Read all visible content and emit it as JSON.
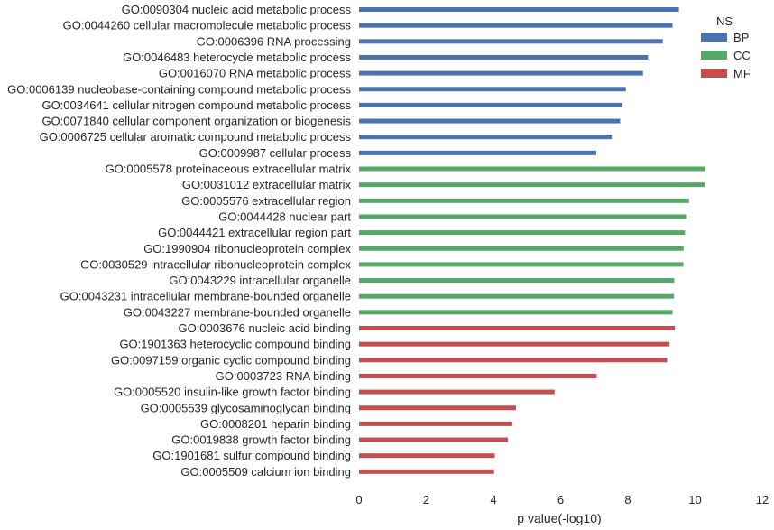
{
  "chart_data": {
    "type": "bar",
    "orientation": "horizontal",
    "xlabel": "p value(-log10)",
    "ylabel": "",
    "xlim": [
      0,
      12
    ],
    "xticks": [
      "0",
      "2",
      "4",
      "6",
      "8",
      "10",
      "12"
    ],
    "grid": false,
    "legend": {
      "title": "NS",
      "placement": "top-right",
      "entries": [
        {
          "name": "BP",
          "color": "#4c72b0"
        },
        {
          "name": "CC",
          "color": "#55a868"
        },
        {
          "name": "MF",
          "color": "#c44e52"
        }
      ]
    },
    "categories": [
      "GO:0090304 nucleic acid metabolic process",
      "GO:0044260 cellular macromolecule metabolic process",
      "GO:0006396 RNA processing",
      "GO:0046483 heterocycle metabolic process",
      "GO:0016070 RNA metabolic process",
      "GO:0006139 nucleobase-containing compound metabolic process",
      "GO:0034641 cellular nitrogen compound metabolic process",
      "GO:0071840 cellular component organization or biogenesis",
      "GO:0006725 cellular aromatic compound metabolic process",
      "GO:0009987 cellular process",
      "GO:0005578 proteinaceous extracellular matrix",
      "GO:0031012 extracellular matrix",
      "GO:0005576 extracellular region",
      "GO:0044428 nuclear part",
      "GO:0044421 extracellular region part",
      "GO:1990904 ribonucleoprotein complex",
      "GO:0030529 intracellular ribonucleoprotein complex",
      "GO:0043229 intracellular organelle",
      "GO:0043231 intracellular membrane-bounded organelle",
      "GO:0043227 membrane-bounded organelle",
      "GO:0003676 nucleic acid binding",
      "GO:1901363 heterocyclic compound binding",
      "GO:0097159 organic cyclic compound binding",
      "GO:0003723 RNA binding",
      "GO:0005520 insulin-like growth factor binding",
      "GO:0005539 glycosaminoglycan binding",
      "GO:0008201 heparin binding",
      "GO:0019838 growth factor binding",
      "GO:1901681 sulfur compound binding",
      "GO:0005509 calcium ion binding"
    ],
    "values": [
      9.52,
      9.33,
      9.04,
      8.6,
      8.45,
      7.94,
      7.83,
      7.77,
      7.52,
      7.06,
      10.3,
      10.28,
      9.82,
      9.76,
      9.7,
      9.66,
      9.65,
      9.38,
      9.37,
      9.33,
      9.4,
      9.24,
      9.17,
      7.07,
      5.82,
      4.67,
      4.56,
      4.43,
      4.04,
      4.02
    ],
    "groups": [
      "BP",
      "BP",
      "BP",
      "BP",
      "BP",
      "BP",
      "BP",
      "BP",
      "BP",
      "BP",
      "CC",
      "CC",
      "CC",
      "CC",
      "CC",
      "CC",
      "CC",
      "CC",
      "CC",
      "CC",
      "MF",
      "MF",
      "MF",
      "MF",
      "MF",
      "MF",
      "MF",
      "MF",
      "MF",
      "MF"
    ]
  }
}
